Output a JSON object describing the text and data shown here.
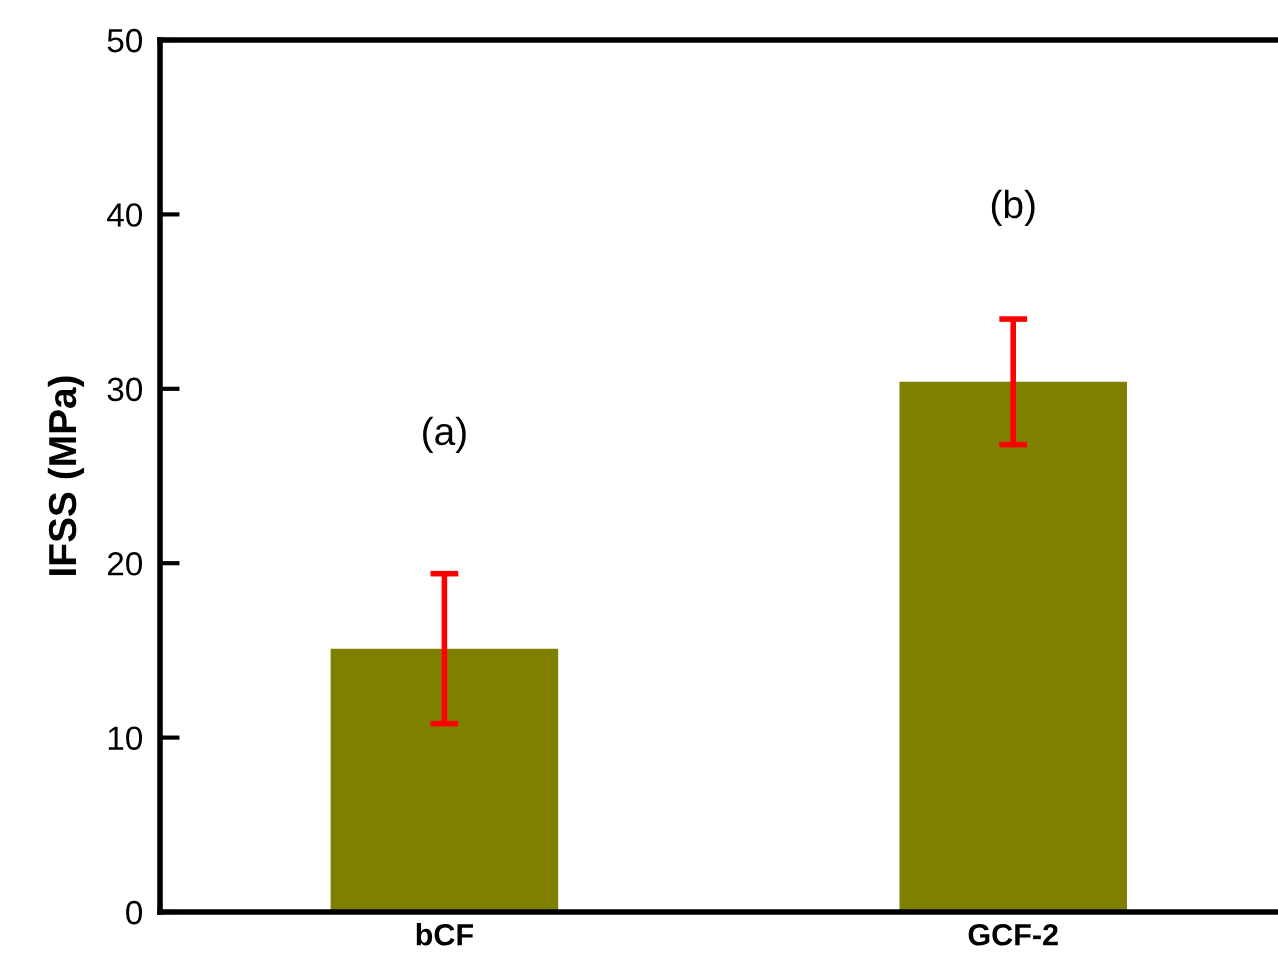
{
  "chart_data": {
    "type": "bar",
    "ylabel": "IFSS (MPa)",
    "categories": [
      "bCF",
      "GCF-2"
    ],
    "values": [
      15.1,
      30.4
    ],
    "color": "#808000",
    "errors": [
      4.3,
      3.6
    ],
    "ylim": [
      0,
      50
    ],
    "yticks": [
      0,
      10,
      20,
      30,
      40,
      50
    ],
    "grid": false,
    "legend": false,
    "annotations": [
      "(a)",
      "(b)"
    ]
  }
}
